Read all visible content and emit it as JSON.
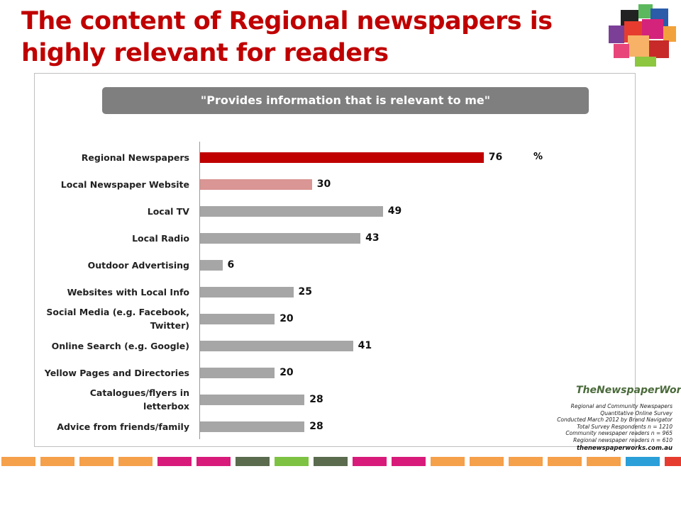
{
  "title": "The content of Regional newspapers is highly relevant for readers",
  "chart_data": {
    "type": "bar",
    "orientation": "horizontal",
    "title": "\"Provides information that is relevant to me\"",
    "unit_label": "%",
    "categories": [
      "Regional Newspapers",
      "Local Newspaper Website",
      "Local TV",
      "Local Radio",
      "Outdoor Advertising",
      "Websites with Local Info",
      "Social Media (e.g. Facebook, Twitter)",
      "Online Search (e.g. Google)",
      "Yellow Pages and Directories",
      "Catalogues/flyers in letterbox",
      "Advice from friends/family"
    ],
    "values": [
      76,
      30,
      49,
      43,
      6,
      25,
      20,
      41,
      20,
      28,
      28
    ],
    "colors": [
      "#c00000",
      "#d99694",
      "#a6a6a6",
      "#a6a6a6",
      "#a6a6a6",
      "#a6a6a6",
      "#a6a6a6",
      "#a6a6a6",
      "#a6a6a6",
      "#a6a6a6",
      "#a6a6a6"
    ]
  },
  "logo": "TheNewspaperWorks",
  "footnote": [
    "Regional and Community Newspapers",
    "Quantitative Online Survey",
    "Conducted March 2012 by Brand Navigator",
    "Total Survey Respondents n = 1210",
    "Community newspaper readers n = 965",
    "Regional newspaper readers n = 610"
  ],
  "website": "thenewspaperworks.com.au"
}
